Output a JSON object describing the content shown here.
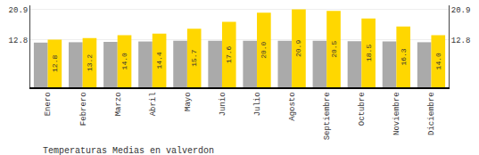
{
  "chart_data": {
    "type": "bar",
    "title": "Temperaturas Medias en valverdon",
    "categories": [
      "Enero",
      "Febrero",
      "Marzo",
      "Abril",
      "Mayo",
      "Junio",
      "Julio",
      "Agosto",
      "Septiembre",
      "Octubre",
      "Noviembre",
      "Diciembre"
    ],
    "series": [
      {
        "color": "#AAAAAA",
        "values": [
          12.0,
          12.1,
          12.2,
          12.3,
          12.5,
          12.5,
          12.5,
          12.5,
          12.5,
          12.4,
          12.3,
          12.1
        ]
      },
      {
        "color": "#FFD700",
        "values": [
          12.8,
          13.2,
          14.0,
          14.4,
          15.7,
          17.6,
          20.0,
          20.9,
          20.5,
          18.5,
          16.3,
          14.0
        ],
        "value_labels": [
          "12.8",
          "13.2",
          "14.0",
          "14.4",
          "15.7",
          "17.6",
          "20.0",
          "20.9",
          "20.5",
          "18.5",
          "16.3",
          "14.0"
        ],
        "data_labels": true
      }
    ],
    "ylim": [
      0,
      22.0
    ],
    "yticks": [
      12.8,
      20.9
    ],
    "y2lim": [
      0,
      22.0
    ],
    "y2ticks": [
      12.8,
      20.9
    ],
    "grid": true
  }
}
